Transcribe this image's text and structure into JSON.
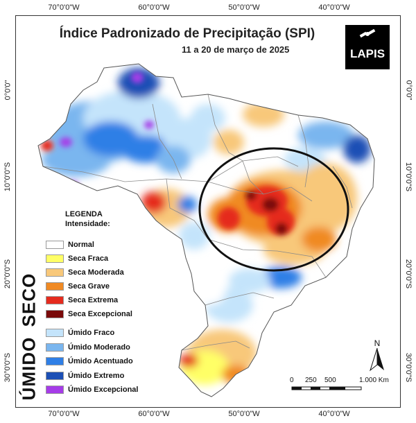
{
  "title": "Índice Padronizado de Precipitação (SPI)",
  "subtitle": "11 a 20 de março de 2025",
  "logo_text": "LAPIS",
  "axes": {
    "top": [
      "70°0'0\"W",
      "60°0'0\"W",
      "50°0'0\"W",
      "40°0'0\"W"
    ],
    "bottom": [
      "70°0'0\"W",
      "60°0'0\"W",
      "50°0'0\"W",
      "40°0'0\"W"
    ],
    "left": [
      "0°0'0\"",
      "10°0'0\"S",
      "20°0'0\"S",
      "30°0'0\"S"
    ],
    "right": [
      "0°0'0\"",
      "10°0'0\"S",
      "20°0'0\"S",
      "30°0'0\"S"
    ]
  },
  "legend": {
    "title_line1": "LEGENDA",
    "title_line2": "Intensidade:",
    "normal": {
      "label": "Normal",
      "color": "#ffffff"
    },
    "seco_label": "SECO",
    "seco": [
      {
        "label": "Seca Fraca",
        "color": "#ffff66"
      },
      {
        "label": "Seca Moderada",
        "color": "#f8c87a"
      },
      {
        "label": "Seca Grave",
        "color": "#f08a24"
      },
      {
        "label": "Seca Extrema",
        "color": "#e52b1e"
      },
      {
        "label": "Seca Excepcional",
        "color": "#7a0a0a"
      }
    ],
    "umido_label": "ÚMIDO",
    "umido": [
      {
        "label": "Úmido Fraco",
        "color": "#c4e4fb"
      },
      {
        "label": "Úmido Moderado",
        "color": "#7ab6ef"
      },
      {
        "label": "Úmido Acentuado",
        "color": "#2f7fe6"
      },
      {
        "label": "Úmido Extremo",
        "color": "#1c4fb5"
      },
      {
        "label": "Úmido Excepcional",
        "color": "#a63ce8"
      }
    ]
  },
  "north_letter": "N",
  "scale": {
    "labels": [
      "0",
      "250",
      "500",
      "1.000 Km"
    ]
  }
}
